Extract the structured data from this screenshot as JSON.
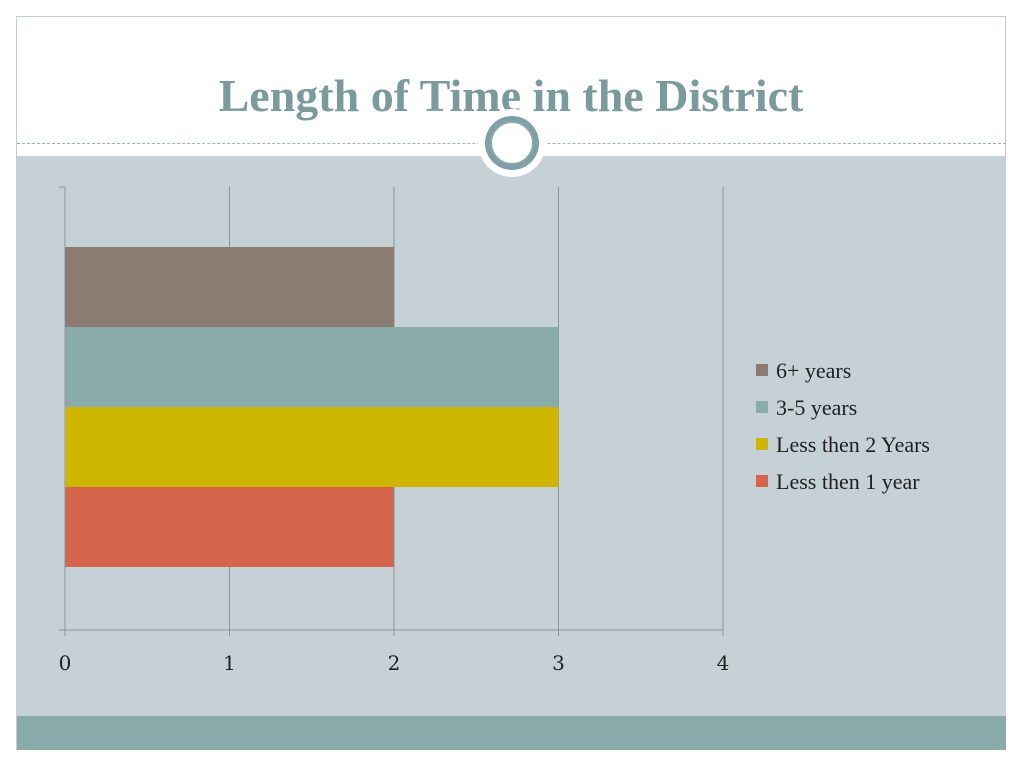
{
  "slide": {
    "title": "Length of Time in the District"
  },
  "colors": {
    "content_bg": "#c6d1d7",
    "title": "#7a9a9b",
    "footer_band": "#8aabac"
  },
  "chart_data": {
    "type": "bar",
    "orientation": "horizontal",
    "categories": [
      ""
    ],
    "series": [
      {
        "name": "6+ years",
        "values": [
          2
        ],
        "color": "#8c7b70"
      },
      {
        "name": "3-5 years",
        "values": [
          3
        ],
        "color": "#8aabac"
      },
      {
        "name": "Less then 2 Years",
        "values": [
          3
        ],
        "color": "#ceb500"
      },
      {
        "name": "Less then 1 year",
        "values": [
          2
        ],
        "color": "#d4654b"
      }
    ],
    "x_ticks": [
      "0",
      "1",
      "2",
      "3",
      "4"
    ],
    "xlim": [
      0,
      4
    ],
    "grid": true,
    "legend_position": "right"
  }
}
